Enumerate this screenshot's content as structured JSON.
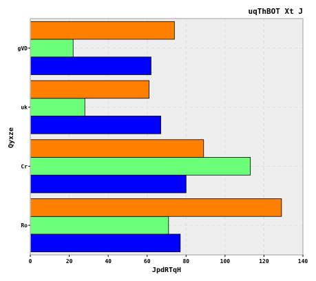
{
  "chart_data": {
    "type": "bar",
    "orientation": "horizontal",
    "title": "uqThBOT Xt J",
    "xlabel": "JpdRTqH",
    "ylabel": "Qyxze",
    "categories": [
      "Ro",
      "Cr",
      "uk",
      "gVD"
    ],
    "series": [
      {
        "color": "#0000ff",
        "values": [
          77,
          80,
          67,
          62
        ]
      },
      {
        "color": "#6cff7a",
        "values": [
          71,
          113,
          28,
          22
        ]
      },
      {
        "color": "#ff7f00",
        "values": [
          129,
          89,
          61,
          74
        ]
      }
    ],
    "xlim": [
      0,
      140
    ],
    "xticks": [
      0,
      20,
      40,
      60,
      80,
      100,
      120,
      140
    ],
    "grid": true,
    "legend": "none",
    "plot_background": "#eeeeee"
  }
}
